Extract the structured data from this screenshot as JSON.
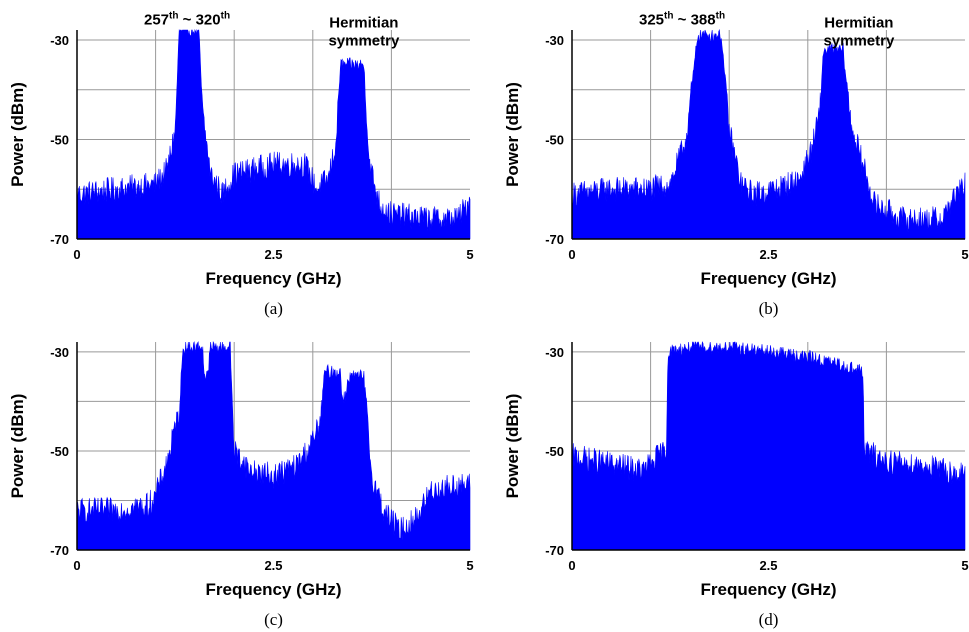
{
  "chart_data": [
    {
      "type": "area",
      "caption": "(a)",
      "xlabel": "Frequency (GHz)",
      "ylabel": "Power (dBm)",
      "xlim": [
        0,
        5
      ],
      "ylim": [
        -70,
        -28
      ],
      "xticks": [
        0,
        2.5,
        5
      ],
      "xtick_labels": [
        "0",
        "2.5",
        "5"
      ],
      "yticks": [
        -30,
        -50,
        -70
      ],
      "ytick_labels": [
        "-30",
        "-50",
        "-70"
      ],
      "grid": true,
      "color": "#0000ff",
      "annotations": [
        {
          "base": "257",
          "sup1": "th",
          "mid": " ~ 320",
          "sup2": "th",
          "x": 1.4,
          "y": -28.5
        },
        {
          "line1": "Hermitian",
          "line2": "symmetry",
          "x": 3.65,
          "y": -28.5
        }
      ],
      "series": [
        {
          "x": [
            0.0,
            0.5,
            1.0,
            1.15,
            1.25,
            1.3,
            1.55,
            1.6,
            1.7,
            1.85,
            2.0,
            2.5,
            2.9,
            3.05,
            3.2,
            3.3,
            3.35,
            3.65,
            3.72,
            3.85,
            4.0,
            4.5,
            4.85,
            5.0
          ],
          "y": [
            -61,
            -60,
            -59,
            -56,
            -48,
            -28,
            -28,
            -45,
            -57,
            -61,
            -57,
            -55,
            -55,
            -60,
            -58,
            -50,
            -35,
            -35,
            -55,
            -63,
            -65,
            -66,
            -66,
            -62
          ]
        }
      ]
    },
    {
      "type": "area",
      "caption": "(b)",
      "xlabel": "Frequency (GHz)",
      "ylabel": "Power (dBm)",
      "xlim": [
        0,
        5
      ],
      "ylim": [
        -70,
        -28
      ],
      "xticks": [
        0,
        2.5,
        5
      ],
      "xtick_labels": [
        "0",
        "2.5",
        "5"
      ],
      "yticks": [
        -30,
        -50,
        -70
      ],
      "ytick_labels": [
        "-30",
        "-50",
        "-70"
      ],
      "grid": true,
      "color": "#0000ff",
      "annotations": [
        {
          "base": "325",
          "sup1": "th",
          "mid": " ~ 388",
          "sup2": "th",
          "x": 1.4,
          "y": -28.5
        },
        {
          "line1": "Hermitian",
          "line2": "symmetry",
          "x": 3.65,
          "y": -28.5
        }
      ],
      "series": [
        {
          "x": [
            0.0,
            0.5,
            1.0,
            1.25,
            1.45,
            1.6,
            1.9,
            2.0,
            2.15,
            2.3,
            2.6,
            2.9,
            3.05,
            3.15,
            3.2,
            3.45,
            3.55,
            3.7,
            3.85,
            4.2,
            4.7,
            4.85,
            5.0
          ],
          "y": [
            -61,
            -60,
            -60,
            -59,
            -50,
            -29,
            -29,
            -48,
            -59,
            -61,
            -60,
            -58,
            -52,
            -45,
            -32,
            -32,
            -47,
            -55,
            -63,
            -66,
            -66,
            -62,
            -59
          ]
        }
      ]
    },
    {
      "type": "area",
      "caption": "(c)",
      "xlabel": "Frequency (GHz)",
      "ylabel": "Power (dBm)",
      "xlim": [
        0,
        5
      ],
      "ylim": [
        -70,
        -28
      ],
      "xticks": [
        0,
        2.5,
        5
      ],
      "xtick_labels": [
        "0",
        "2.5",
        "5"
      ],
      "yticks": [
        -30,
        -50,
        -70
      ],
      "ytick_labels": [
        "-30",
        "-50",
        "-70"
      ],
      "grid": true,
      "color": "#0000ff",
      "annotations": [],
      "series": [
        {
          "x": [
            0.0,
            0.5,
            0.9,
            1.0,
            1.15,
            1.3,
            1.35,
            1.6,
            1.62,
            1.66,
            1.7,
            1.95,
            2.0,
            2.2,
            2.5,
            2.8,
            3.0,
            3.1,
            3.15,
            3.35,
            3.37,
            3.42,
            3.45,
            3.65,
            3.75,
            3.9,
            4.1,
            4.3,
            4.5,
            4.8,
            5.0
          ],
          "y": [
            -62,
            -62,
            -61,
            -59,
            -52,
            -42,
            -29,
            -29,
            -35,
            -35,
            -29,
            -29,
            -50,
            -54,
            -55,
            -53,
            -48,
            -44,
            -34,
            -34,
            -39,
            -39,
            -35,
            -35,
            -55,
            -62,
            -66,
            -64,
            -58,
            -57,
            -57
          ]
        }
      ]
    },
    {
      "type": "area",
      "caption": "(d)",
      "xlabel": "Frequency (GHz)",
      "ylabel": "Power (dBm)",
      "xlim": [
        0,
        5
      ],
      "ylim": [
        -70,
        -28
      ],
      "xticks": [
        0,
        2.5,
        5
      ],
      "xtick_labels": [
        "0",
        "2.5",
        "5"
      ],
      "yticks": [
        -30,
        -50,
        -70
      ],
      "ytick_labels": [
        "-30",
        "-50",
        "-70"
      ],
      "grid": true,
      "color": "#0000ff",
      "annotations": [],
      "series": [
        {
          "x": [
            0.0,
            0.3,
            0.6,
            0.9,
            1.1,
            1.2,
            1.22,
            1.5,
            2.0,
            2.5,
            3.0,
            3.5,
            3.7,
            3.72,
            4.0,
            4.5,
            5.0
          ],
          "y": [
            -51,
            -52,
            -53,
            -54,
            -51,
            -50,
            -30,
            -29,
            -29,
            -30,
            -31,
            -33,
            -34,
            -50,
            -52,
            -53,
            -55
          ]
        }
      ]
    }
  ]
}
